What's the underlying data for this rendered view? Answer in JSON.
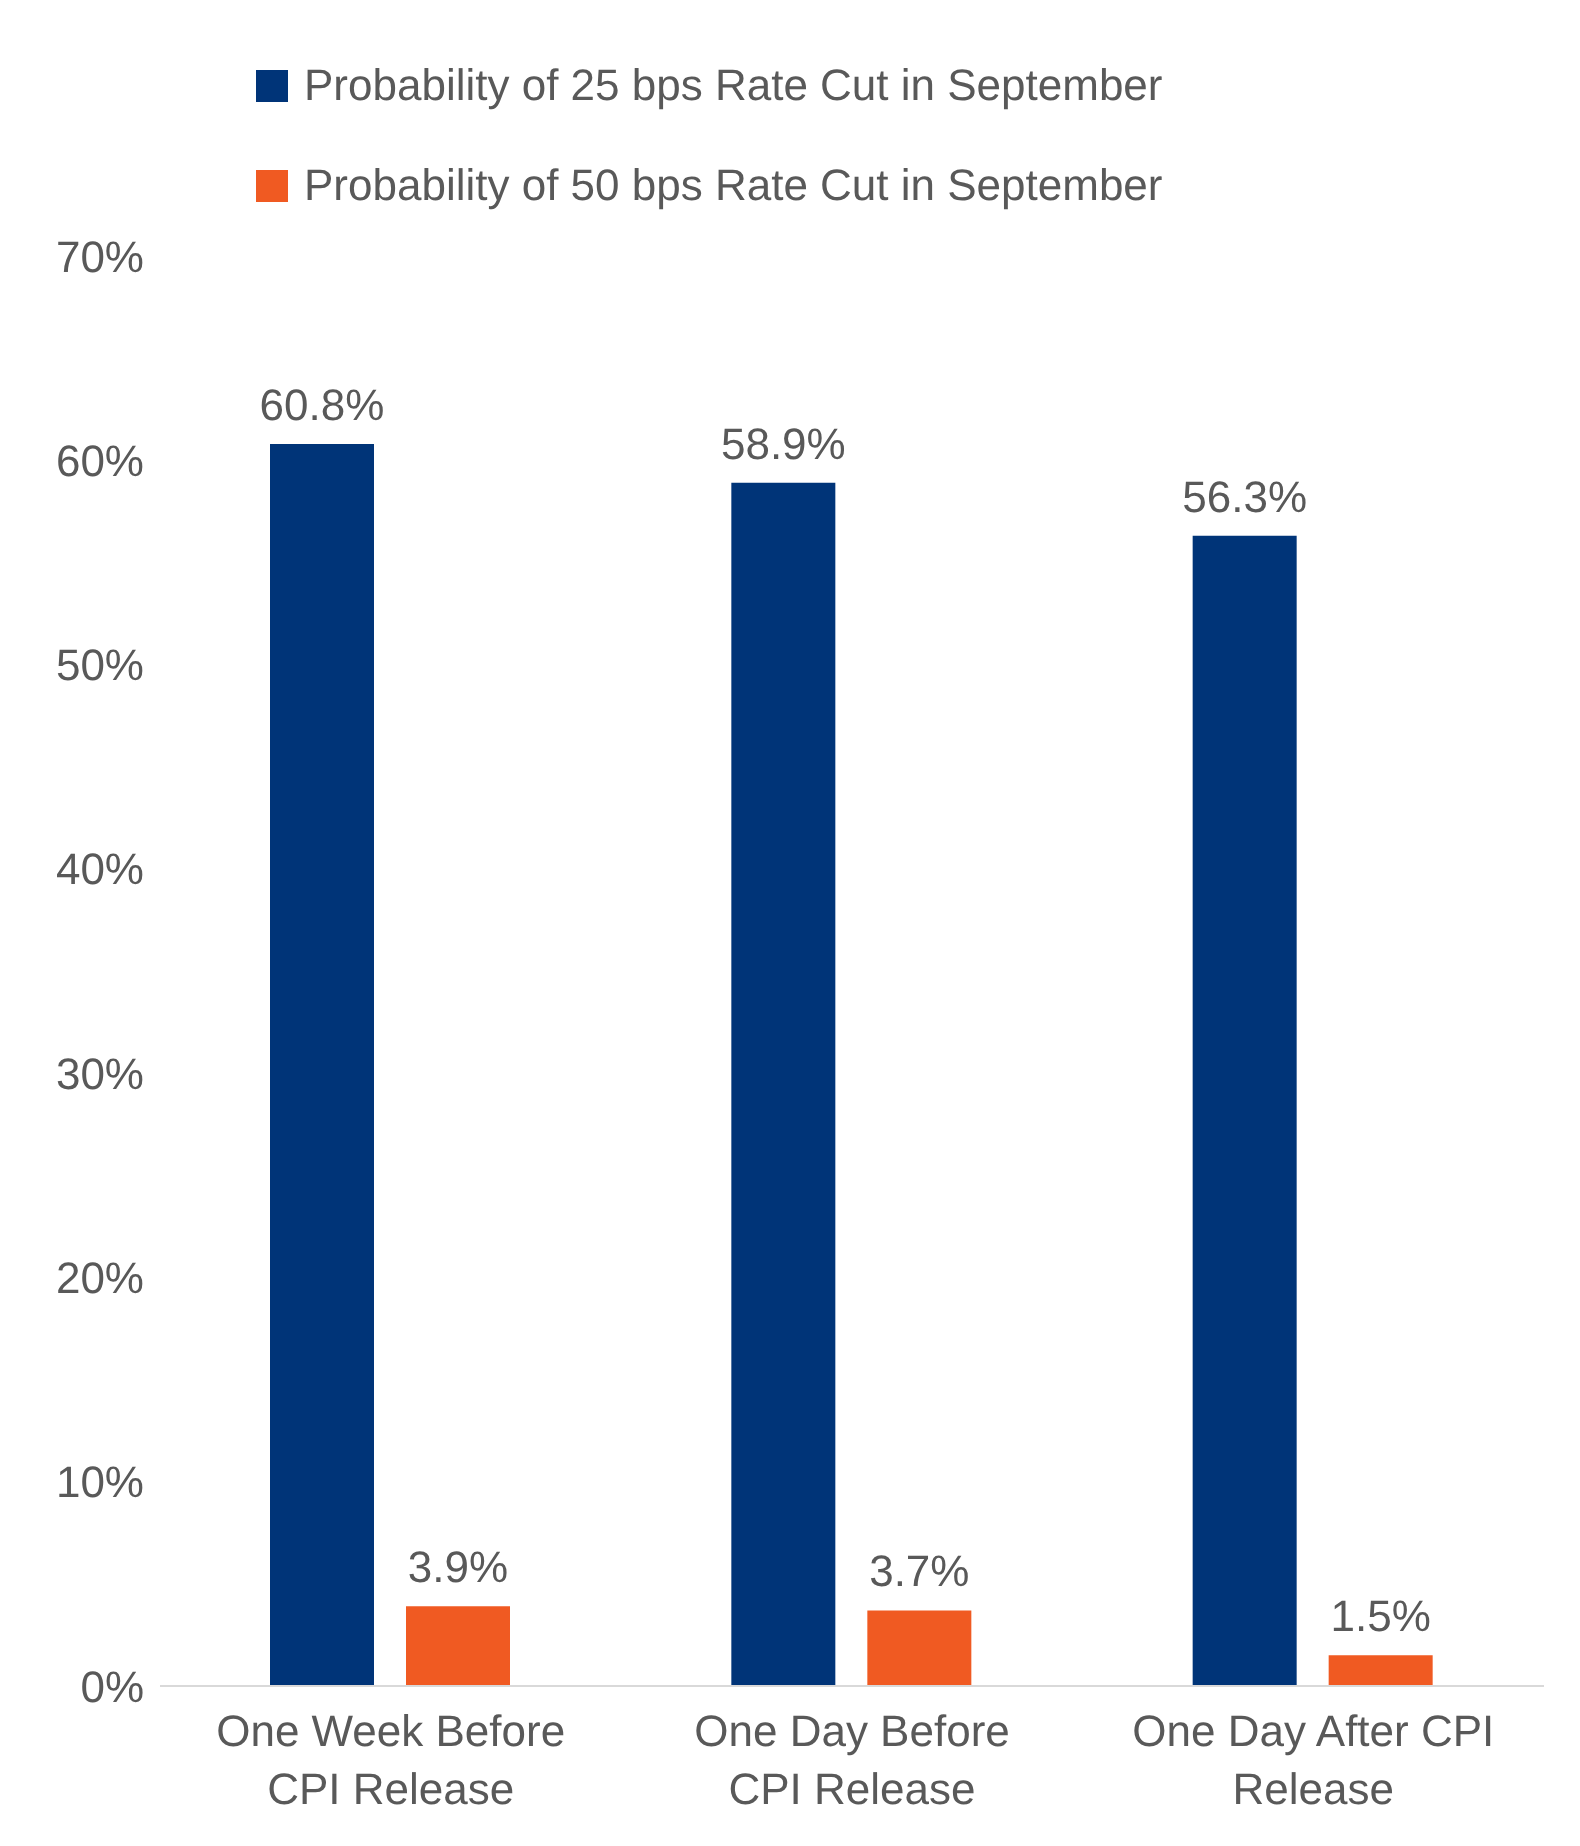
{
  "chart_data": {
    "type": "bar",
    "categories": [
      "One Week Before CPI Release",
      "One Day Before CPI Release",
      "One Day After CPI Release"
    ],
    "series": [
      {
        "name": "Probability of 25 bps Rate Cut in September",
        "color": "#003478",
        "values": [
          60.8,
          58.9,
          56.3
        ],
        "value_labels": [
          "60.8%",
          "58.9%",
          "56.3%"
        ]
      },
      {
        "name": "Probability of 50 bps Rate Cut in September",
        "color": "#f05a22",
        "values": [
          3.9,
          3.7,
          1.5
        ],
        "value_labels": [
          "3.9%",
          "3.7%",
          "1.5%"
        ]
      }
    ],
    "ylim": [
      0,
      70
    ],
    "yticks": [
      {
        "value": 0,
        "label": "0%"
      },
      {
        "value": 10,
        "label": "10%"
      },
      {
        "value": 20,
        "label": "20%"
      },
      {
        "value": 30,
        "label": "30%"
      },
      {
        "value": 40,
        "label": "40%"
      },
      {
        "value": 50,
        "label": "50%"
      },
      {
        "value": 60,
        "label": "60%"
      },
      {
        "value": 70,
        "label": "70%"
      }
    ],
    "grid": false,
    "legend": "top"
  }
}
